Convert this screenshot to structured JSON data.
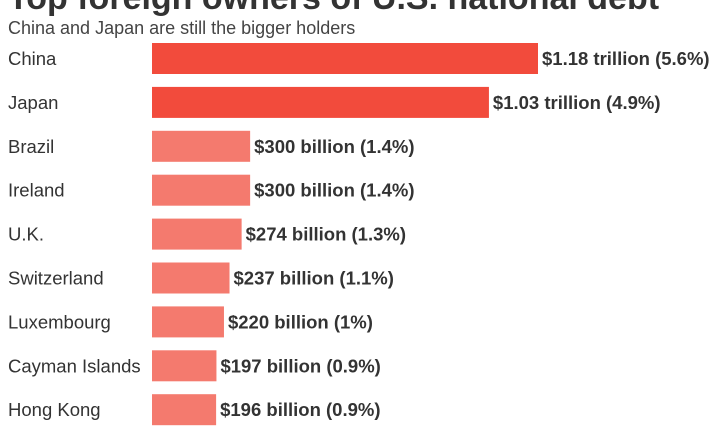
{
  "chart_data": {
    "type": "bar",
    "orientation": "horizontal",
    "title": "Top foreign owners of U.S. national debt",
    "subtitle": "China and Japan are still the bigger holders",
    "categories": [
      "China",
      "Japan",
      "Brazil",
      "Ireland",
      "U.K.",
      "Switzerland",
      "Luxembourg",
      "Cayman Islands",
      "Hong Kong"
    ],
    "values": [
      1180,
      1030,
      300,
      300,
      274,
      237,
      220,
      197,
      196
    ],
    "units": "billion USD",
    "labels": [
      "$1.18 trillion (5.6%)",
      "$1.03 trillion (4.9%)",
      "$300 billion (1.4%)",
      "$300 billion (1.4%)",
      "$274 billion (1.3%)",
      "$237 billion (1.1%)",
      "$220 billion (1%)",
      "$197 billion (0.9%)",
      "$196 billion (0.9%)"
    ],
    "highlight_count": 2,
    "colors": {
      "highlight": "#f24b3c",
      "normal": "#f47a6e"
    },
    "xlim": [
      0,
      1180
    ]
  }
}
